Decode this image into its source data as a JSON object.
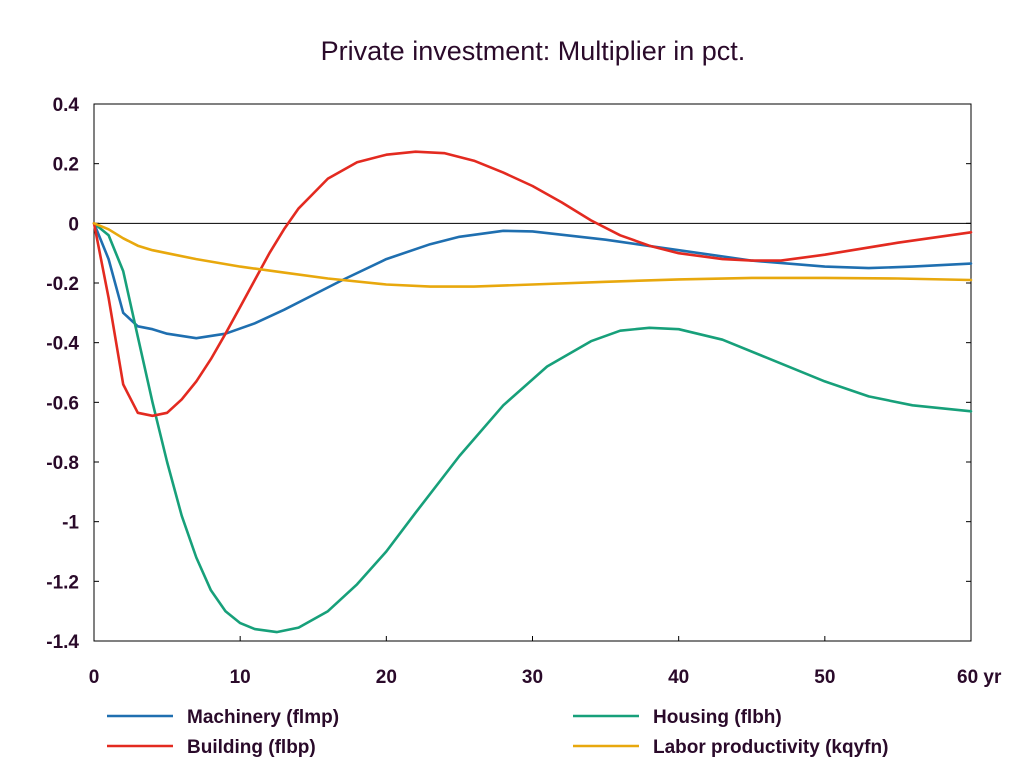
{
  "chart_data": {
    "type": "line",
    "title": "Private investment: Multiplier in pct.",
    "xlim": [
      0,
      60
    ],
    "ylim": [
      -1.4,
      0.4
    ],
    "x_ticks": [
      0,
      10,
      20,
      30,
      40,
      50,
      60
    ],
    "x_tick_labels": [
      "0",
      "10",
      "20",
      "30",
      "40",
      "50",
      "60 yr"
    ],
    "y_ticks": [
      0.4,
      0.2,
      0,
      -0.2,
      -0.4,
      -0.6,
      -0.8,
      -1,
      -1.2,
      -1.4
    ],
    "y_tick_labels": [
      "0.4",
      "0.2",
      "0",
      "-0.2",
      "-0.4",
      "-0.6",
      "-0.8",
      "-1",
      "-1.2",
      "-1.4"
    ],
    "zero_line": true,
    "grid": false,
    "legend_position": "bottom",
    "series": [
      {
        "name": "Machinery (flmp)",
        "color": "#1f6fb0",
        "points": [
          [
            0,
            0
          ],
          [
            1,
            -0.12
          ],
          [
            2,
            -0.3
          ],
          [
            3,
            -0.345
          ],
          [
            4,
            -0.355
          ],
          [
            5,
            -0.37
          ],
          [
            7,
            -0.385
          ],
          [
            9,
            -0.37
          ],
          [
            11,
            -0.335
          ],
          [
            13,
            -0.29
          ],
          [
            15,
            -0.24
          ],
          [
            17,
            -0.19
          ],
          [
            20,
            -0.12
          ],
          [
            23,
            -0.07
          ],
          [
            25,
            -0.045
          ],
          [
            28,
            -0.025
          ],
          [
            30,
            -0.027
          ],
          [
            35,
            -0.055
          ],
          [
            40,
            -0.09
          ],
          [
            45,
            -0.125
          ],
          [
            50,
            -0.145
          ],
          [
            53,
            -0.15
          ],
          [
            56,
            -0.145
          ],
          [
            60,
            -0.135
          ]
        ]
      },
      {
        "name": "Housing (flbh)",
        "color": "#17a07a",
        "points": [
          [
            0,
            0
          ],
          [
            1,
            -0.04
          ],
          [
            2,
            -0.16
          ],
          [
            3,
            -0.38
          ],
          [
            4,
            -0.6
          ],
          [
            5,
            -0.8
          ],
          [
            6,
            -0.98
          ],
          [
            7,
            -1.12
          ],
          [
            8,
            -1.23
          ],
          [
            9,
            -1.3
          ],
          [
            10,
            -1.34
          ],
          [
            11,
            -1.36
          ],
          [
            12.5,
            -1.37
          ],
          [
            14,
            -1.355
          ],
          [
            16,
            -1.3
          ],
          [
            18,
            -1.21
          ],
          [
            20,
            -1.1
          ],
          [
            22,
            -0.97
          ],
          [
            25,
            -0.78
          ],
          [
            28,
            -0.61
          ],
          [
            31,
            -0.48
          ],
          [
            34,
            -0.395
          ],
          [
            36,
            -0.36
          ],
          [
            38,
            -0.35
          ],
          [
            40,
            -0.355
          ],
          [
            43,
            -0.39
          ],
          [
            46,
            -0.45
          ],
          [
            50,
            -0.53
          ],
          [
            53,
            -0.58
          ],
          [
            56,
            -0.61
          ],
          [
            60,
            -0.63
          ]
        ]
      },
      {
        "name": "Building (flbp)",
        "color": "#e32a20",
        "points": [
          [
            0,
            0
          ],
          [
            1,
            -0.25
          ],
          [
            2,
            -0.54
          ],
          [
            3,
            -0.635
          ],
          [
            4,
            -0.645
          ],
          [
            5,
            -0.635
          ],
          [
            6,
            -0.59
          ],
          [
            7,
            -0.53
          ],
          [
            8,
            -0.455
          ],
          [
            9,
            -0.37
          ],
          [
            10,
            -0.28
          ],
          [
            11,
            -0.19
          ],
          [
            12,
            -0.1
          ],
          [
            13,
            -0.02
          ],
          [
            14,
            0.05
          ],
          [
            15,
            0.1
          ],
          [
            16,
            0.15
          ],
          [
            18,
            0.205
          ],
          [
            20,
            0.23
          ],
          [
            22,
            0.24
          ],
          [
            24,
            0.235
          ],
          [
            26,
            0.21
          ],
          [
            28,
            0.17
          ],
          [
            30,
            0.125
          ],
          [
            32,
            0.07
          ],
          [
            34,
            0.01
          ],
          [
            36,
            -0.04
          ],
          [
            38,
            -0.075
          ],
          [
            40,
            -0.1
          ],
          [
            43,
            -0.12
          ],
          [
            45,
            -0.125
          ],
          [
            47,
            -0.125
          ],
          [
            50,
            -0.105
          ],
          [
            55,
            -0.065
          ],
          [
            60,
            -0.03
          ]
        ]
      },
      {
        "name": "Labor productivity (kqyfn)",
        "color": "#e8a80d",
        "points": [
          [
            0,
            0
          ],
          [
            1,
            -0.02
          ],
          [
            2,
            -0.05
          ],
          [
            3,
            -0.075
          ],
          [
            4,
            -0.09
          ],
          [
            5,
            -0.1
          ],
          [
            7,
            -0.12
          ],
          [
            10,
            -0.145
          ],
          [
            13,
            -0.165
          ],
          [
            16,
            -0.185
          ],
          [
            20,
            -0.205
          ],
          [
            23,
            -0.212
          ],
          [
            26,
            -0.212
          ],
          [
            30,
            -0.205
          ],
          [
            35,
            -0.196
          ],
          [
            40,
            -0.188
          ],
          [
            45,
            -0.183
          ],
          [
            50,
            -0.183
          ],
          [
            55,
            -0.185
          ],
          [
            60,
            -0.19
          ]
        ]
      }
    ]
  }
}
